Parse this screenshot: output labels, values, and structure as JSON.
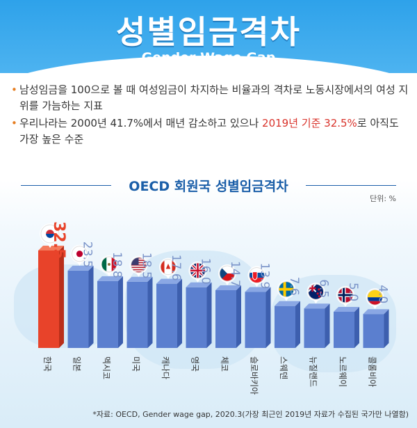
{
  "title": "성별임금격차",
  "subtitle": "Gender Wage Gap",
  "bullets": [
    {
      "text": "남성임금을 100으로 볼 때 여성임금이 차지하는 비율과의 격차로 노동시장에서의 여성 지위를 가늠하는 지표"
    },
    {
      "text_before": "우리나라는 2000년 41.7%에서 매년 감소하고 있으나 ",
      "highlight": "2019년 기준 32.5%",
      "text_after": "로 아직도 가장 높은 수준"
    }
  ],
  "section_title": "OECD 회원국 성별임금격차",
  "unit_label": "단위: %",
  "source": "*자료: OECD, Gender wage gap, 2020.3(가장 최근인 2019년 자료가 수집된 국가만 나열함)",
  "colors": {
    "highlight_bar": "#e8432a",
    "bar": "#5b7fcf",
    "header": "#2ea2ea",
    "accent_text": "#d9322a"
  },
  "chart_data": {
    "type": "bar",
    "title": "OECD 회원국 성별임금격차",
    "ylabel": "단위: %",
    "ylim": [
      0,
      35
    ],
    "categories": [
      "한국",
      "일본",
      "멕시코",
      "미국",
      "캐나다",
      "영국",
      "체코",
      "슬로바키아",
      "스웨덴",
      "뉴질랜드",
      "노르웨이",
      "콜롬비아"
    ],
    "values": [
      32.5,
      23.5,
      18.8,
      18.5,
      17.6,
      16.0,
      14.7,
      13.9,
      7.6,
      6.5,
      5.0,
      4.0
    ],
    "flags": [
      "korea-flag-icon",
      "japan-flag-icon",
      "mexico-flag-icon",
      "usa-flag-icon",
      "canada-flag-icon",
      "uk-flag-icon",
      "czech-flag-icon",
      "slovakia-flag-icon",
      "sweden-flag-icon",
      "new-zealand-flag-icon",
      "norway-flag-icon",
      "colombia-flag-icon"
    ]
  }
}
